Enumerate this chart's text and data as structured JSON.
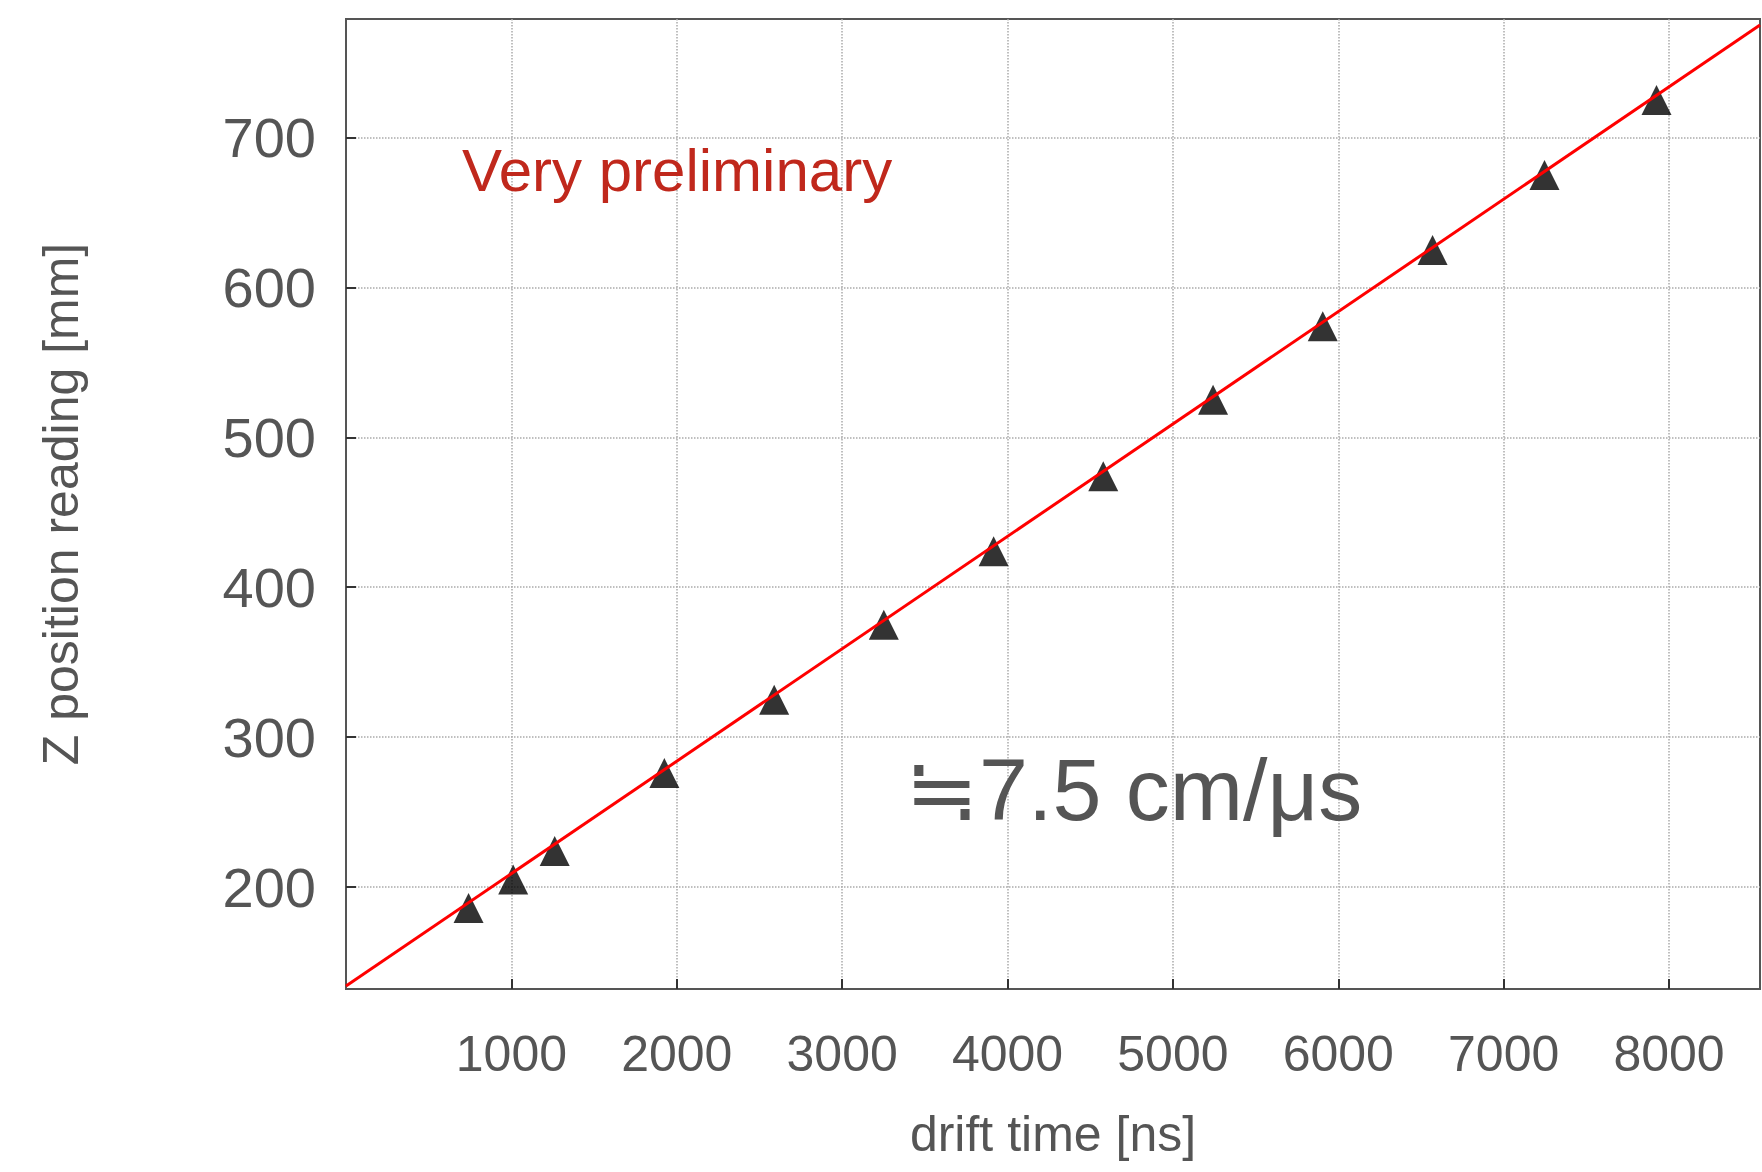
{
  "chart_data": {
    "type": "scatter",
    "xlabel": "drift time [ns]",
    "ylabel": "Z position reading [mm]",
    "annotations": [
      "Very preliminary",
      "≒7.5 cm/μs"
    ],
    "xlim": [
      0,
      8550
    ],
    "xticks": [
      1000,
      2000,
      3000,
      4000,
      5000,
      6000,
      7000,
      8000
    ],
    "ylim": [
      132,
      779
    ],
    "yticks": [
      200,
      300,
      400,
      500,
      600,
      700
    ],
    "grid": true,
    "series": [
      {
        "color": "#000000",
        "marker": "triangle",
        "x": [
          741,
          1011,
          1262,
          1925,
          2589,
          3252,
          3916,
          4579,
          5243,
          5906,
          6570,
          7247,
          7924
        ],
        "values": [
          186,
          205,
          224,
          276,
          325,
          375,
          424,
          474,
          525,
          574,
          625,
          675,
          725
        ]
      },
      {
        "type": "line",
        "color": "#ff0000",
        "marker": "none",
        "line_style": "solid",
        "x": [
          0,
          8550
        ],
        "values": [
          134,
          775
        ]
      }
    ]
  }
}
